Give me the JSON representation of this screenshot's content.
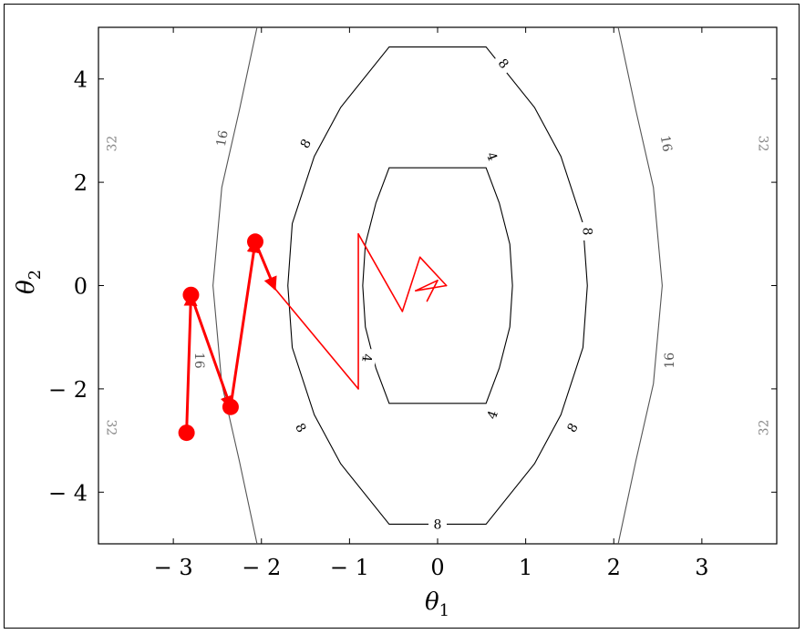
{
  "chart_data": {
    "type": "line",
    "title": "",
    "xlabel": "θ",
    "xlabel_sub": "1",
    "ylabel": "θ",
    "ylabel_sub": "2",
    "xlim": [
      -3.85,
      3.85
    ],
    "ylim": [
      -5,
      5
    ],
    "xticks": [
      -3,
      -2,
      -1,
      0,
      1,
      2,
      3
    ],
    "yticks": [
      -4,
      -2,
      0,
      2,
      4
    ],
    "xtick_labels": [
      "− 3",
      "− 2",
      "− 1",
      "0",
      "1",
      "2",
      "3"
    ],
    "ytick_labels": [
      "− 4",
      "− 2",
      "0",
      "2",
      "4"
    ],
    "grid": false,
    "contours": [
      {
        "level": 4,
        "label": "4",
        "color": "#000000",
        "points": [
          [
            -0.85,
            0
          ],
          [
            -0.82,
            0.8
          ],
          [
            -0.7,
            1.6
          ],
          [
            -0.55,
            2.28
          ],
          [
            0.55,
            2.28
          ],
          [
            0.7,
            1.6
          ],
          [
            0.82,
            0.8
          ],
          [
            0.85,
            0
          ],
          [
            0.82,
            -0.8
          ],
          [
            0.7,
            -1.6
          ],
          [
            0.55,
            -2.28
          ],
          [
            -0.55,
            -2.28
          ],
          [
            -0.7,
            -1.6
          ],
          [
            -0.82,
            -0.8
          ]
        ]
      },
      {
        "level": 8,
        "label": "8",
        "color": "#000000",
        "points": [
          [
            -1.7,
            0
          ],
          [
            -1.65,
            1.2
          ],
          [
            -1.4,
            2.5
          ],
          [
            -1.1,
            3.45
          ],
          [
            -0.55,
            4.62
          ],
          [
            0.55,
            4.62
          ],
          [
            1.1,
            3.45
          ],
          [
            1.4,
            2.5
          ],
          [
            1.65,
            1.2
          ],
          [
            1.7,
            0
          ],
          [
            1.65,
            -1.2
          ],
          [
            1.4,
            -2.5
          ],
          [
            1.1,
            -3.45
          ],
          [
            0.55,
            -4.62
          ],
          [
            -0.55,
            -4.62
          ],
          [
            -1.1,
            -3.45
          ],
          [
            -1.4,
            -2.5
          ],
          [
            -1.65,
            -1.2
          ]
        ]
      },
      {
        "level": 16,
        "label": "16",
        "color": "#555555",
        "points": [
          [
            -2.05,
            5
          ],
          [
            -2.25,
            3.4
          ],
          [
            -2.45,
            1.9
          ],
          [
            -2.55,
            0
          ],
          [
            -2.45,
            -1.9
          ],
          [
            -2.25,
            -3.4
          ],
          [
            -2.05,
            -5
          ]
        ],
        "points2": [
          [
            2.05,
            5
          ],
          [
            2.25,
            3.4
          ],
          [
            2.45,
            1.9
          ],
          [
            2.55,
            0
          ],
          [
            2.45,
            -1.9
          ],
          [
            2.25,
            -3.4
          ],
          [
            2.05,
            -5
          ]
        ]
      },
      {
        "level": 32,
        "label": "32",
        "color": "#888888"
      }
    ],
    "contour_labels": [
      {
        "text": "4",
        "x": 0.62,
        "y": 2.5,
        "rot": 70,
        "color": "#000000"
      },
      {
        "text": "4",
        "x": -0.8,
        "y": -1.4,
        "rot": 95,
        "color": "#000000"
      },
      {
        "text": "4",
        "x": 0.62,
        "y": -2.5,
        "rot": -70,
        "color": "#000000"
      },
      {
        "text": "8",
        "x": 0.75,
        "y": 4.3,
        "rot": 50,
        "color": "#000000"
      },
      {
        "text": "8",
        "x": -1.5,
        "y": 2.75,
        "rot": -60,
        "color": "#000000"
      },
      {
        "text": "8",
        "x": 1.7,
        "y": 1.05,
        "rot": 90,
        "color": "#000000"
      },
      {
        "text": "8",
        "x": -1.55,
        "y": -2.75,
        "rot": 60,
        "color": "#000000"
      },
      {
        "text": "8",
        "x": 1.53,
        "y": -2.75,
        "rot": -60,
        "color": "#000000"
      },
      {
        "text": "8",
        "x": 0,
        "y": -4.62,
        "rot": 0,
        "color": "#000000"
      },
      {
        "text": "16",
        "x": -2.45,
        "y": 2.85,
        "rot": -80,
        "color": "#555555"
      },
      {
        "text": "16",
        "x": 2.6,
        "y": 2.75,
        "rot": 80,
        "color": "#555555"
      },
      {
        "text": "16",
        "x": -2.7,
        "y": -1.45,
        "rot": 90,
        "color": "#555555"
      },
      {
        "text": "16",
        "x": 2.63,
        "y": -1.45,
        "rot": -90,
        "color": "#555555"
      },
      {
        "text": "32",
        "x": -3.7,
        "y": 2.75,
        "rot": -90,
        "color": "#888888"
      },
      {
        "text": "32",
        "x": 3.7,
        "y": 2.75,
        "rot": 90,
        "color": "#888888"
      },
      {
        "text": "32",
        "x": -3.7,
        "y": -2.75,
        "rot": 90,
        "color": "#888888"
      },
      {
        "text": "32",
        "x": 3.7,
        "y": -2.75,
        "rot": -90,
        "color": "#888888"
      }
    ],
    "series": [
      {
        "color": "#ff0000",
        "style": "thick-with-markers",
        "points": [
          [
            -2.85,
            -2.85
          ],
          [
            -2.8,
            -0.18
          ],
          [
            -2.35,
            -2.35
          ],
          [
            -2.07,
            0.85
          ],
          [
            -1.85,
            -0.05
          ]
        ]
      },
      {
        "color": "#ff0000",
        "style": "thin",
        "points": [
          [
            -1.85,
            -0.05
          ],
          [
            -0.9,
            -2.0
          ],
          [
            -0.9,
            1.0
          ],
          [
            -0.4,
            -0.5
          ],
          [
            -0.2,
            0.55
          ],
          [
            0.1,
            0.0
          ],
          [
            -0.25,
            -0.1
          ],
          [
            0.0,
            0.1
          ],
          [
            -0.12,
            -0.3
          ]
        ]
      }
    ]
  },
  "colors": {
    "red": "#ff0000",
    "contour_dark": "#000000",
    "contour_mid": "#555555",
    "contour_light": "#888888"
  }
}
